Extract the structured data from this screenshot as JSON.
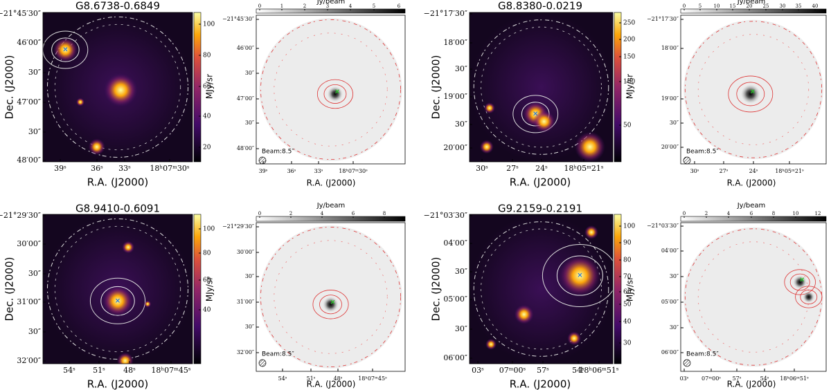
{
  "panels": [
    {
      "title": "G8.6738-0.6849",
      "ylabel": "Dec. (J2000)",
      "xlabel": "R.A. (J2000)",
      "colorbar": {
        "label": "MJy/sr",
        "ticks": [
          20,
          40,
          60,
          80,
          100
        ]
      },
      "yticks": [
        "−21°45′30″",
        "46′00″",
        "30″",
        "47′00″",
        "30″",
        "48′00″"
      ],
      "xticks": [
        "39ˢ",
        "36ˢ",
        "33ˢ",
        "18ʰ07ᵐ30ˢ"
      ]
    },
    {
      "xlabel": "R.A. (J2000)",
      "colorbar": {
        "label": "Jy/beam",
        "ticks": [
          0,
          1,
          2,
          3,
          4,
          5,
          6
        ]
      },
      "yticks": [
        "−21°45′30″",
        "46′00″",
        "30″",
        "47′00″",
        "30″",
        "48′00″"
      ],
      "xticks": [
        "39ˢ",
        "36ˢ",
        "33ˢ",
        "18ʰ07ᵐ30ˢ"
      ],
      "beam": "Beam:8.5″"
    },
    {
      "title": "G8.8380-0.0219",
      "ylabel": "Dec. (J2000)",
      "xlabel": "R.A. (J2000)",
      "colorbar": {
        "label": "MJy/sr",
        "ticks": [
          50,
          100,
          150,
          200,
          250
        ]
      },
      "yticks": [
        "−21°17′30″",
        "18′00″",
        "30″",
        "19′00″",
        "30″",
        "20′00″"
      ],
      "xticks": [
        "30ˢ",
        "27ˢ",
        "24ˢ",
        "18ʰ05ᵐ21ˢ"
      ]
    },
    {
      "xlabel": "R.A. (J2000)",
      "colorbar": {
        "label": "Jy/beam",
        "ticks": [
          0,
          5,
          10,
          15,
          20,
          25,
          30,
          35,
          40
        ]
      },
      "yticks": [
        "−21°17′30″",
        "18′00″",
        "19′00″",
        "30″",
        "20′00″"
      ],
      "xticks": [
        "30ˢ",
        "27ˢ",
        "24ˢ",
        "18ʰ05ᵐ21ˢ"
      ],
      "beam": "Beam:8.5″"
    },
    {
      "title": "G8.9410-0.6091",
      "ylabel": "Dec. (J2000)",
      "xlabel": "R.A. (J2000)",
      "colorbar": {
        "label": "MJy/sr",
        "ticks": [
          40,
          60,
          80,
          100
        ]
      },
      "yticks": [
        "−21°29′30″",
        "30′00″",
        "30″",
        "31′00″",
        "30″",
        "32′00″"
      ],
      "xticks": [
        "54ˢ",
        "51ˢ",
        "48ˢ",
        "18ʰ07ᵐ45ˢ"
      ]
    },
    {
      "xlabel": "R.A. (J2000)",
      "colorbar": {
        "label": "Jy/beam",
        "ticks": [
          0,
          2,
          4,
          6,
          8
        ]
      },
      "yticks": [
        "−21°29′30″",
        "30′00″",
        "30″",
        "31′00″",
        "30″",
        "32′00″"
      ],
      "xticks": [
        "54ˢ",
        "51ˢ",
        "48ˢ",
        "18ʰ07ᵐ45ˢ"
      ],
      "beam": "Beam:8.5″"
    },
    {
      "title": "G9.2159-0.2191",
      "ylabel": "Dec. (J2000)",
      "xlabel": "R.A. (J2000)",
      "colorbar": {
        "label": "MJy/sr",
        "ticks": [
          30,
          40,
          50,
          60,
          70,
          80,
          90,
          100
        ]
      },
      "yticks": [
        "−21°03′30″",
        "04′00″",
        "30″",
        "05′00″",
        "30″",
        "06′00″"
      ],
      "xticks": [
        "03ˢ",
        "07ᵐ00ˢ",
        "57ˢ",
        "54ˢ",
        "18ʰ06ᵐ51ˢ"
      ]
    },
    {
      "xlabel": "R.A. (J2000)",
      "colorbar": {
        "label": "Jy/beam",
        "ticks": [
          0,
          2,
          4,
          6,
          8,
          10,
          12
        ]
      },
      "yticks": [
        "−21°03′30″",
        "04′00″",
        "30″",
        "05′00″",
        "30″",
        "06′00″"
      ],
      "xticks": [
        "03ˢ",
        "07ᵐ00ˢ",
        "57ˢ",
        "54ˢ",
        "18ʰ06ᵐ51ˢ"
      ],
      "beam": "Beam:8.5″"
    }
  ]
}
